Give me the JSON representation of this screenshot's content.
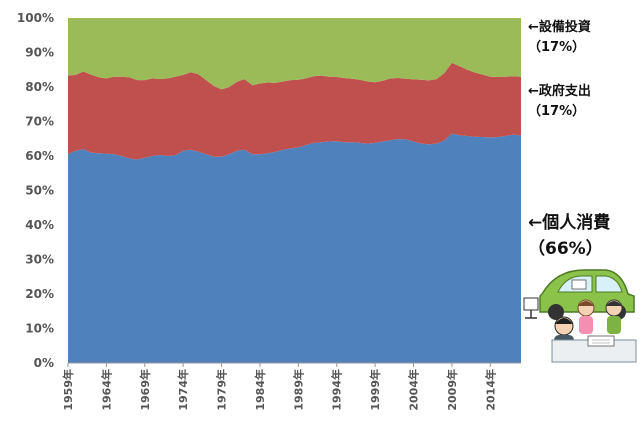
{
  "chart_data": {
    "type": "area",
    "stacked": true,
    "percent": true,
    "x": [
      1959,
      1960,
      1961,
      1962,
      1963,
      1964,
      1965,
      1966,
      1967,
      1968,
      1969,
      1970,
      1971,
      1972,
      1973,
      1974,
      1975,
      1976,
      1977,
      1978,
      1979,
      1980,
      1981,
      1982,
      1983,
      1984,
      1985,
      1986,
      1987,
      1988,
      1989,
      1990,
      1991,
      1992,
      1993,
      1994,
      1995,
      1996,
      1997,
      1998,
      1999,
      2000,
      2001,
      2002,
      2003,
      2004,
      2005,
      2006,
      2007,
      2008,
      2009,
      2010,
      2011,
      2012,
      2013,
      2014,
      2015,
      2016,
      2017,
      2018
    ],
    "series": [
      {
        "name": "個人消費",
        "color": "#4f81bd",
        "values": [
          60.5,
          61.5,
          62,
          61,
          60.8,
          60.7,
          60.5,
          60,
          59.3,
          59,
          59.5,
          60,
          60.3,
          60,
          60.2,
          61.5,
          61.8,
          61.2,
          60.5,
          59.8,
          59.8,
          60.5,
          61.5,
          61.8,
          60.5,
          60.5,
          60.8,
          61.2,
          61.8,
          62.2,
          62.5,
          63.2,
          63.8,
          64,
          64.2,
          64.3,
          64,
          64,
          63.8,
          63.6,
          63.8,
          64.2,
          64.6,
          64.9,
          64.8,
          64.2,
          63.6,
          63.4,
          63.6,
          64.5,
          66.5,
          66,
          65.8,
          65.6,
          65.5,
          65.4,
          65.5,
          65.8,
          66.2,
          66
        ]
      },
      {
        "name": "政府支出",
        "color": "#c0504d",
        "values": [
          22.8,
          22,
          22.5,
          22.6,
          22,
          21.8,
          22.5,
          23,
          23.5,
          23,
          22.5,
          22.5,
          22,
          22.5,
          22.8,
          22,
          22.5,
          22.5,
          21.5,
          20.5,
          19.5,
          19.5,
          20,
          20.5,
          20,
          20.5,
          20.5,
          20,
          19.8,
          19.8,
          19.6,
          19.3,
          19.3,
          19.3,
          18.8,
          18.6,
          18.6,
          18.4,
          18.3,
          18,
          17.6,
          17.6,
          17.9,
          17.7,
          17.6,
          18,
          18.5,
          18.5,
          18.7,
          19.5,
          20.5,
          20,
          19.2,
          18.6,
          18.1,
          17.6,
          17.4,
          17.2,
          16.9,
          17
        ]
      },
      {
        "name": "設備投資",
        "color": "#9bbb59",
        "values": [
          16.7,
          16.5,
          15.5,
          16.4,
          17.2,
          17.5,
          17,
          17,
          17.2,
          18,
          18,
          17.5,
          17.7,
          17.5,
          17,
          16.5,
          15.7,
          16.3,
          18,
          19.7,
          20.7,
          20,
          18.5,
          17.7,
          19.5,
          19,
          18.7,
          18.8,
          18.4,
          18,
          17.9,
          17.5,
          16.9,
          16.7,
          17,
          17.1,
          17.4,
          17.6,
          17.9,
          18.4,
          18.6,
          18.2,
          17.5,
          17.4,
          17.6,
          17.8,
          17.9,
          18.1,
          17.7,
          16,
          13,
          14,
          15,
          15.8,
          16.4,
          17,
          17.1,
          17,
          16.9,
          17
        ]
      }
    ],
    "ylim": [
      0,
      100
    ],
    "yticks": [
      "0%",
      "10%",
      "20%",
      "30%",
      "40%",
      "50%",
      "60%",
      "70%",
      "80%",
      "90%",
      "100%"
    ],
    "xtick_labels": [
      "1959年",
      "1964年",
      "1969年",
      "1974年",
      "1979年",
      "1984年",
      "1989年",
      "1994年",
      "1999年",
      "2004年",
      "2009年",
      "2014年"
    ],
    "grid": false
  },
  "annotations": {
    "capex_label": "←設備投資",
    "capex_share": "（17%）",
    "gov_label": "←政府支出",
    "gov_share": "（17%）",
    "consumption_label": "←個人消費",
    "consumption_share": "（66%）"
  }
}
